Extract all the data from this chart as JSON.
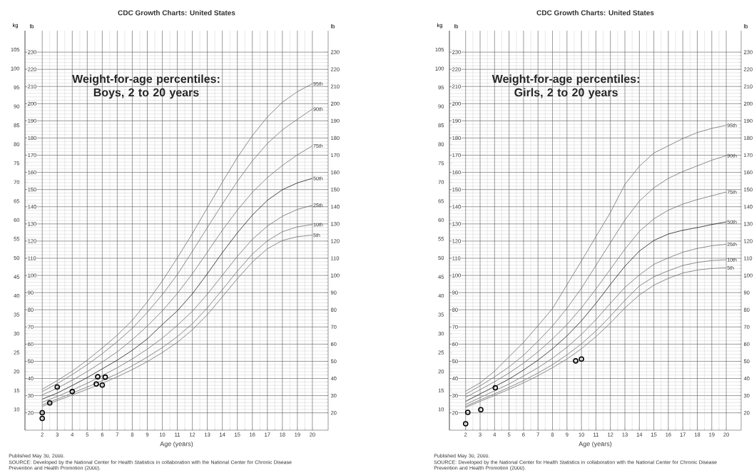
{
  "chart_data": [
    {
      "type": "line",
      "title": "CDC Growth Charts: United States",
      "subtitle": "Weight-for-age percentiles: Boys, 2 to 20 years",
      "xlabel": "Age (years)",
      "ylabel": "kg",
      "y2label": "lb",
      "y3label": "lb",
      "x": [
        2,
        3,
        4,
        5,
        6,
        7,
        8,
        9,
        10,
        11,
        12,
        13,
        14,
        15,
        16,
        17,
        18,
        19,
        20
      ],
      "xlim": [
        0.85,
        21.05
      ],
      "xticks": [
        2,
        3,
        4,
        5,
        6,
        7,
        8,
        9,
        10,
        11,
        12,
        13,
        14,
        15,
        16,
        17,
        18,
        19,
        20
      ],
      "ylim": [
        4.5,
        110
      ],
      "yticks": [
        10,
        15,
        20,
        25,
        30,
        35,
        40,
        45,
        50,
        55,
        60,
        65,
        70,
        75,
        80,
        85,
        90,
        95,
        100,
        105
      ],
      "y2lim": [
        9.9,
        242.5
      ],
      "y2ticks": [
        20,
        30,
        40,
        50,
        60,
        70,
        80,
        90,
        100,
        110,
        120,
        130,
        140,
        150,
        160,
        170,
        180,
        190,
        200,
        210,
        220,
        230
      ],
      "y3lim": [
        9.9,
        242.5
      ],
      "y3ticks": [
        20,
        30,
        40,
        50,
        60,
        70,
        80,
        90,
        100,
        110,
        120,
        130,
        140,
        150,
        160,
        170,
        180,
        190,
        200,
        210,
        220,
        230
      ],
      "grid": true,
      "series": [
        {
          "name": "95th",
          "color": "#707070",
          "values": [
            15.3,
            17.6,
            20.1,
            23.0,
            26.2,
            29.6,
            33.5,
            38.4,
            43.9,
            50.0,
            56.4,
            63.2,
            70.0,
            76.5,
            82.3,
            87.2,
            91.1,
            93.9,
            96.0
          ]
        },
        {
          "name": "90th",
          "color": "#707070",
          "values": [
            14.7,
            16.8,
            19.2,
            21.8,
            24.7,
            27.9,
            31.4,
            35.6,
            40.3,
            45.6,
            51.7,
            58.0,
            64.2,
            70.2,
            75.6,
            80.2,
            83.8,
            86.6,
            89.3
          ]
        },
        {
          "name": "75th",
          "color": "#707070",
          "values": [
            13.8,
            15.6,
            17.7,
            20.0,
            22.5,
            25.2,
            28.4,
            32.0,
            36.0,
            40.6,
            45.8,
            51.5,
            57.3,
            62.6,
            67.3,
            71.2,
            74.4,
            77.2,
            79.6
          ]
        },
        {
          "name": "50th",
          "color": "#1a1a1a",
          "values": [
            12.7,
            14.3,
            16.3,
            18.4,
            20.7,
            23.0,
            25.6,
            28.6,
            32.4,
            36.0,
            40.5,
            45.8,
            51.4,
            56.6,
            61.3,
            65.2,
            68.0,
            69.8,
            71.0
          ]
        },
        {
          "name": "25th",
          "color": "#707070",
          "values": [
            11.9,
            13.4,
            15.1,
            16.9,
            18.9,
            21.0,
            23.3,
            25.9,
            28.8,
            32.2,
            35.9,
            40.4,
            45.4,
            50.4,
            54.9,
            58.4,
            61.0,
            62.8,
            63.9
          ]
        },
        {
          "name": "10th",
          "color": "#707070",
          "values": [
            11.2,
            12.7,
            14.3,
            15.9,
            17.6,
            19.4,
            21.5,
            23.8,
            26.3,
            29.2,
            32.6,
            36.8,
            41.6,
            46.5,
            51.0,
            54.5,
            56.9,
            58.2,
            58.8
          ]
        },
        {
          "name": "5th",
          "color": "#707070",
          "values": [
            10.8,
            12.3,
            13.8,
            15.3,
            16.9,
            18.6,
            20.5,
            22.6,
            25.0,
            27.7,
            31.0,
            35.0,
            39.7,
            44.5,
            48.9,
            52.4,
            54.6,
            55.6,
            56.0
          ]
        },
        {
          "type": "scatter",
          "marker": "circle",
          "color": "#000000",
          "x": [
            2.0,
            2.0,
            2.5,
            3.0,
            4.0,
            5.6,
            5.7,
            6.0,
            6.2
          ],
          "values": [
            9.1,
            7.6,
            11.7,
            15.9,
            14.7,
            16.7,
            18.6,
            16.4,
            18.5
          ]
        }
      ],
      "annotations": [
        "Published May 30, 2000.",
        "SOURCE: Developed by the National Center for Health Statistics in collaboration with the National Center for Chronic Disease Prevention and Health Promotion (2000)."
      ]
    },
    {
      "type": "line",
      "title": "CDC Growth Charts: United States",
      "subtitle": "Weight-for-age percentiles: Girls, 2 to 20 years",
      "xlabel": "Age (years)",
      "ylabel": "kg",
      "y2label": "lb",
      "y3label": "lb",
      "x": [
        2,
        3,
        4,
        5,
        6,
        7,
        8,
        9,
        10,
        11,
        12,
        13,
        14,
        15,
        16,
        17,
        18,
        19,
        20
      ],
      "xlim": [
        0.88,
        21.03
      ],
      "xticks": [
        2,
        3,
        4,
        5,
        6,
        7,
        8,
        9,
        10,
        11,
        12,
        13,
        14,
        15,
        16,
        17,
        18,
        19,
        20
      ],
      "ylim": [
        4.5,
        110
      ],
      "yticks": [
        10,
        15,
        20,
        25,
        30,
        35,
        40,
        45,
        50,
        55,
        60,
        65,
        70,
        75,
        80,
        85,
        90,
        95,
        100,
        105
      ],
      "y2lim": [
        9.9,
        242.5
      ],
      "y2ticks": [
        20,
        30,
        40,
        50,
        60,
        70,
        80,
        90,
        100,
        110,
        120,
        130,
        140,
        150,
        160,
        170,
        180,
        190,
        200,
        210,
        220,
        230
      ],
      "y3lim": [
        9.9,
        242.5
      ],
      "y3ticks": [
        20,
        30,
        40,
        50,
        60,
        70,
        80,
        90,
        100,
        110,
        120,
        130,
        140,
        150,
        160,
        170,
        180,
        190,
        200,
        210,
        220,
        230
      ],
      "grid": true,
      "series": [
        {
          "name": "95th",
          "color": "#707070",
          "values": [
            14.8,
            17.0,
            20.1,
            23.9,
            27.7,
            32.1,
            36.6,
            42.9,
            49.2,
            55.6,
            62.0,
            69.4,
            74.2,
            77.7,
            79.6,
            81.5,
            83.1,
            84.2,
            85.0
          ]
        },
        {
          "name": "90th",
          "color": "#707070",
          "values": [
            14.0,
            16.2,
            18.6,
            21.2,
            24.3,
            28.0,
            32.0,
            36.7,
            42.0,
            48.0,
            54.0,
            60.0,
            65.0,
            68.5,
            71.0,
            72.8,
            74.3,
            75.8,
            77.0
          ]
        },
        {
          "name": "75th",
          "color": "#707070",
          "values": [
            13.2,
            15.2,
            17.3,
            19.6,
            22.2,
            25.2,
            28.6,
            32.4,
            36.8,
            41.8,
            47.0,
            52.3,
            57.0,
            60.3,
            62.6,
            64.2,
            65.4,
            66.4,
            67.4
          ]
        },
        {
          "name": "50th",
          "color": "#1a1a1a",
          "values": [
            12.1,
            14.1,
            16.0,
            18.0,
            20.4,
            23.0,
            26.0,
            29.4,
            33.4,
            38.0,
            43.0,
            47.8,
            51.8,
            54.6,
            56.3,
            57.3,
            58.0,
            58.8,
            59.5
          ]
        },
        {
          "name": "25th",
          "color": "#707070",
          "values": [
            11.3,
            13.1,
            14.9,
            16.7,
            18.8,
            21.0,
            23.5,
            26.4,
            29.8,
            33.7,
            38.0,
            42.2,
            45.5,
            48.3,
            50.0,
            51.5,
            52.5,
            53.2,
            53.6
          ]
        },
        {
          "name": "10th",
          "color": "#707070",
          "values": [
            10.8,
            12.5,
            14.1,
            15.8,
            17.6,
            19.6,
            21.8,
            24.4,
            27.3,
            30.7,
            34.6,
            38.8,
            42.6,
            45.0,
            46.6,
            48.0,
            48.8,
            49.3,
            49.5
          ]
        },
        {
          "name": "5th",
          "color": "#707070",
          "values": [
            10.5,
            12.1,
            13.7,
            15.3,
            17.0,
            18.9,
            21.0,
            23.3,
            26.0,
            29.2,
            32.8,
            36.8,
            40.2,
            42.8,
            44.6,
            46.0,
            46.8,
            47.2,
            47.4
          ]
        },
        {
          "type": "scatter",
          "marker": "circle",
          "color": "#000000",
          "x": [
            2.0,
            2.15,
            3.05,
            4.05,
            9.6,
            10.0
          ],
          "values": [
            6.2,
            9.2,
            9.9,
            15.7,
            22.8,
            23.3
          ]
        }
      ],
      "annotations": [
        "Published May 30, 2000.",
        "SOURCE: Developed by the National Center for Health Statistics in collaboration with the National Center for Chronic Disease Prevention and Health Promotion (2000)."
      ]
    }
  ]
}
